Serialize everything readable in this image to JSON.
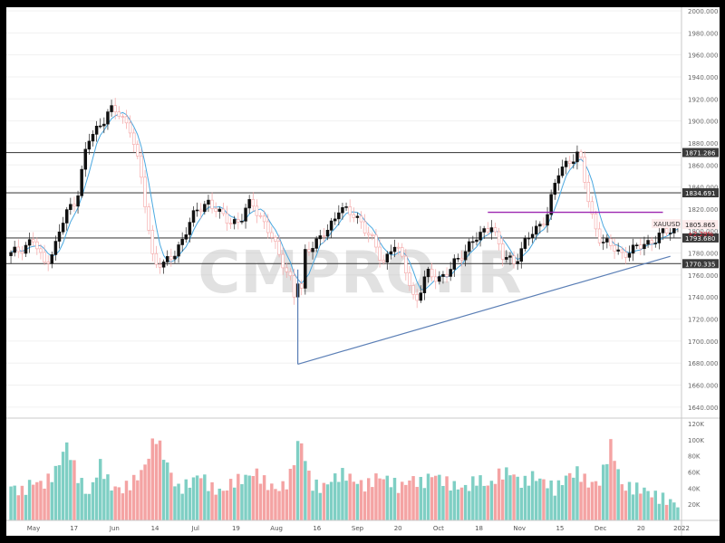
{
  "watermark": "CMPRO.IR",
  "symbol_tag": "XAUUSD",
  "price_labels": [
    {
      "text": "1871.286",
      "value": 1871.286
    },
    {
      "text": "1834.691",
      "value": 1834.691
    },
    {
      "text": "1805.865",
      "value": 1805.865
    },
    {
      "text": "1793.680",
      "value": 1793.68
    },
    {
      "text": "1770.335",
      "value": 1770.335
    }
  ],
  "change_text": "+2.29%",
  "colors": {
    "up": "#7fcfc4",
    "down": "#f4a3a3",
    "body_up": "#ffffff",
    "body_down": "#111111",
    "ma": "#4aa8e0",
    "hline": "#4a4a4a",
    "resistance": "#9c27b0",
    "trend": "#5b7fb6"
  },
  "chart_data": {
    "type": "candlestick",
    "title": "",
    "y_axis": {
      "min": 1630,
      "max": 2000,
      "ticks": [
        "2000.000",
        "1980.000",
        "1960.000",
        "1940.000",
        "1920.000",
        "1900.000",
        "1880.000",
        "1860.000",
        "1840.000",
        "1820.000",
        "1800.000",
        "1780.000",
        "1760.000",
        "1740.000",
        "1720.000",
        "1700.000",
        "1680.000",
        "1660.000",
        "1640.000"
      ]
    },
    "x_axis": {
      "ticks": [
        "May",
        "17",
        "Jun",
        "14",
        "Jul",
        "19",
        "Aug",
        "16",
        "Sep",
        "20",
        "Oct",
        "18",
        "Nov",
        "15",
        "Dec",
        "20",
        "2022"
      ]
    },
    "horizontal_levels": [
      1871.286,
      1834.691,
      1793.68,
      1770.335
    ],
    "resistance_segment": {
      "from_bar": 128,
      "to_bar": 175,
      "price": 1817
    },
    "trend_line": {
      "from": {
        "bar": 77,
        "price": 1679
      },
      "to": {
        "bar": 177,
        "price": 1777
      }
    },
    "spike_line": {
      "bar": 77,
      "high": 1765,
      "low": 1679
    },
    "anchor_prices": [
      1778,
      1785,
      1792,
      1770,
      1785,
      1815,
      1830,
      1880,
      1895,
      1910,
      1905,
      1893,
      1842,
      1775,
      1768,
      1780,
      1800,
      1818,
      1828,
      1815,
      1810,
      1808,
      1828,
      1810,
      1790,
      1770,
      1745,
      1785,
      1790,
      1800,
      1822,
      1815,
      1810,
      1792,
      1770,
      1790,
      1768,
      1735,
      1760,
      1758,
      1762,
      1775,
      1790,
      1795,
      1808,
      1775,
      1772,
      1790,
      1800,
      1815,
      1850,
      1865,
      1870,
      1818,
      1790,
      1785,
      1780,
      1782,
      1790,
      1792,
      1800,
      1806
    ],
    "volume_axis": {
      "max": 120000,
      "ticks": [
        "120K",
        "100K",
        "80K",
        "60K",
        "40K",
        "20K"
      ]
    },
    "volume_anchors": [
      42,
      35,
      48,
      45,
      60,
      95,
      55,
      30,
      70,
      42,
      38,
      48,
      65,
      105,
      72,
      38,
      45,
      58,
      40,
      35,
      48,
      52,
      60,
      45,
      38,
      48,
      105,
      45,
      40,
      52,
      58,
      48,
      42,
      55,
      50,
      40,
      52,
      45,
      58,
      48,
      42,
      40,
      52,
      42,
      58,
      60,
      45,
      55,
      48,
      38,
      55,
      60,
      45,
      48,
      95,
      42,
      40,
      38,
      30,
      25,
      20
    ]
  },
  "volume_labels": [
    "120K",
    "100K",
    "80K",
    "60K",
    "40K",
    "20K"
  ]
}
